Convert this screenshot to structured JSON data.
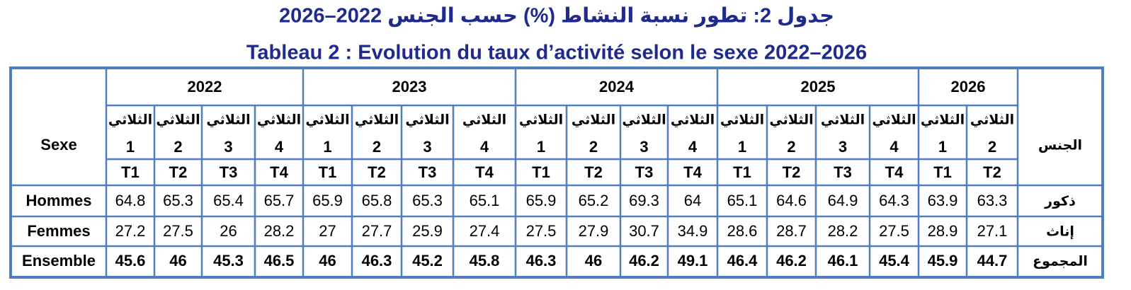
{
  "title_ar": "جدول 2: تطور نسبة النشاط (%) حسب الجنس 2022–2026",
  "title_fr": "Tableau 2 : Evolution du taux d’activité selon le sexe 2022–2026",
  "table": {
    "header_left": "Sexe",
    "header_right": "الجنس",
    "years": [
      "2022",
      "2023",
      "2024",
      "2025",
      "2026"
    ],
    "columns": [
      {
        "quarter_ar": "الثلاثي",
        "quarter_num": "1",
        "code": "T1"
      },
      {
        "quarter_ar": "الثلاثي",
        "quarter_num": "2",
        "code": "T2"
      },
      {
        "quarter_ar": "الثلاثي",
        "quarter_num": "3",
        "code": "T3"
      },
      {
        "quarter_ar": "الثلاثي",
        "quarter_num": "4",
        "code": "T4"
      },
      {
        "quarter_ar": "الثلاثي",
        "quarter_num": "1",
        "code": "T1"
      },
      {
        "quarter_ar": "الثلاثي",
        "quarter_num": "2",
        "code": "T2"
      },
      {
        "quarter_ar": "الثلاثي",
        "quarter_num": "3",
        "code": "T3"
      },
      {
        "quarter_ar": "الثلاثي",
        "quarter_num": "4",
        "code": "T4"
      },
      {
        "quarter_ar": "الثلاثي",
        "quarter_num": "1",
        "code": "T1"
      },
      {
        "quarter_ar": "الثلاثي",
        "quarter_num": "2",
        "code": "T2"
      },
      {
        "quarter_ar": "الثلاثي",
        "quarter_num": "3",
        "code": "T3"
      },
      {
        "quarter_ar": "الثلاثي",
        "quarter_num": "4",
        "code": "T4"
      },
      {
        "quarter_ar": "الثلاثي",
        "quarter_num": "1",
        "code": "T1"
      },
      {
        "quarter_ar": "الثلاثي",
        "quarter_num": "2",
        "code": "T2"
      },
      {
        "quarter_ar": "الثلاثي",
        "quarter_num": "3",
        "code": "T3"
      },
      {
        "quarter_ar": "الثلاثي",
        "quarter_num": "4",
        "code": "T4"
      },
      {
        "quarter_ar": "الثلاثي",
        "quarter_num": "1",
        "code": "T1"
      },
      {
        "quarter_ar": "الثلاثي",
        "quarter_num": "2",
        "code": "T2"
      }
    ],
    "rows": [
      {
        "label_fr": "Hommes",
        "label_ar": "ذكور",
        "values": [
          64.8,
          65.3,
          65.4,
          65.7,
          65.9,
          65.8,
          65.3,
          65.1,
          65.9,
          65.2,
          69.3,
          64,
          65.1,
          64.6,
          64.9,
          64.3,
          63.9,
          63.3
        ]
      },
      {
        "label_fr": "Femmes",
        "label_ar": "إناث",
        "values": [
          27.2,
          27.5,
          26,
          28.2,
          27,
          27.7,
          25.9,
          27.4,
          27.5,
          27.9,
          30.7,
          34.9,
          28.6,
          28.7,
          28.2,
          27.5,
          28.9,
          27.1
        ]
      },
      {
        "label_fr": "Ensemble",
        "label_ar": "المجموع",
        "values": [
          45.6,
          46,
          45.3,
          46.5,
          46,
          46.3,
          45.2,
          45.8,
          46.3,
          46,
          46.2,
          49.1,
          46.4,
          46.2,
          46.1,
          45.4,
          45.9,
          44.7
        ]
      }
    ]
  }
}
